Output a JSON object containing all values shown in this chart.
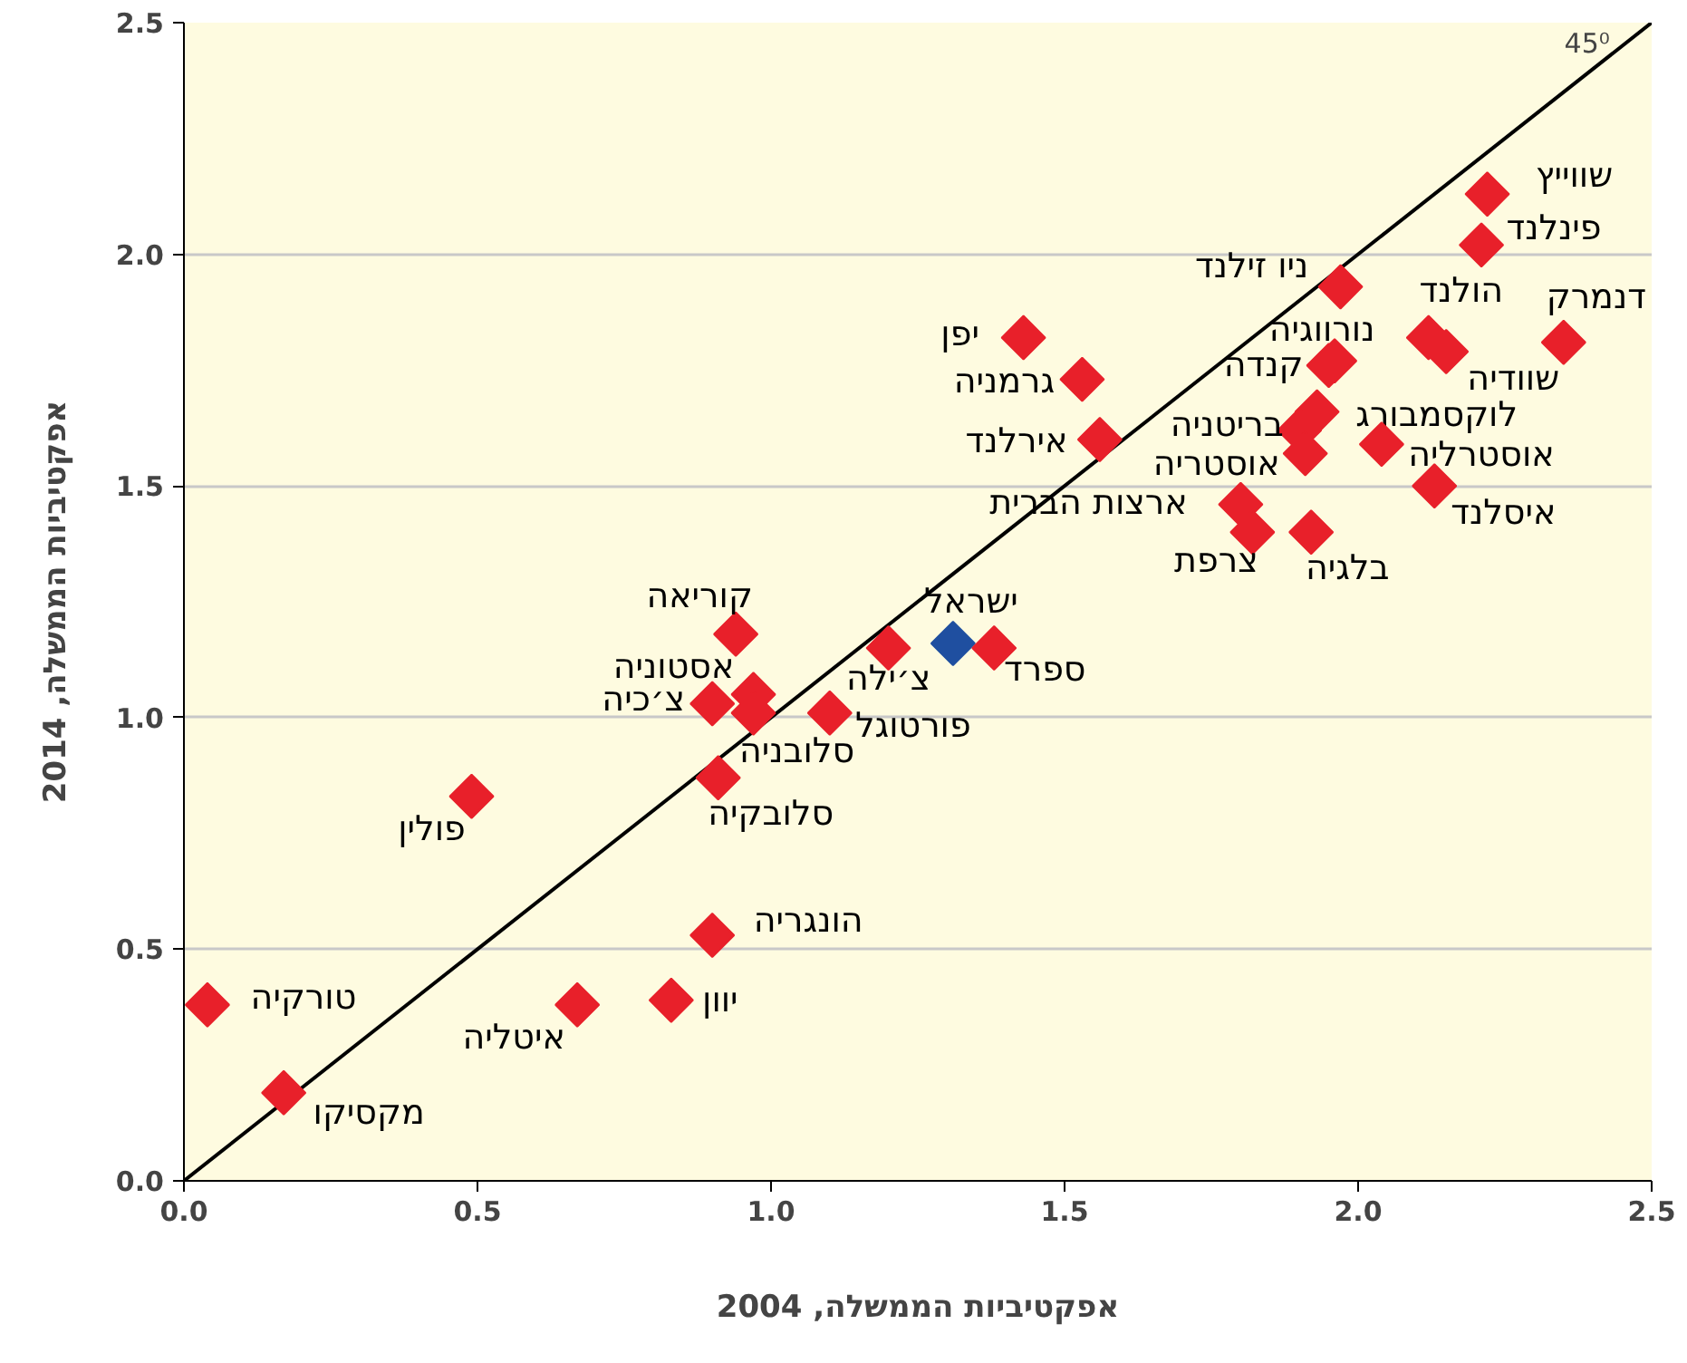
{
  "chart_data": {
    "type": "scatter",
    "xlabel": "אפקטיביות הממשלה, 2004",
    "ylabel": "אפקטיביות הממשלה, 2014",
    "xlim": [
      0,
      2.5
    ],
    "ylim": [
      0,
      2.5
    ],
    "xticks": [
      {
        "value": 0,
        "label": "0.0"
      },
      {
        "value": 0.5,
        "label": "0.5"
      },
      {
        "value": 1,
        "label": "1.0"
      },
      {
        "value": 1.5,
        "label": "1.5"
      },
      {
        "value": 2,
        "label": "2.0"
      },
      {
        "value": 2.5,
        "label": "2.5"
      }
    ],
    "yticks": [
      {
        "value": 0,
        "label": "0.0"
      },
      {
        "value": 0.5,
        "label": "0.5"
      },
      {
        "value": 1,
        "label": "1.0"
      },
      {
        "value": 1.5,
        "label": "1.5"
      },
      {
        "value": 2,
        "label": "2.0"
      },
      {
        "value": 2.5,
        "label": "2.5"
      }
    ],
    "grid": "y",
    "marker": "diamond",
    "annotations": [
      {
        "text": "45⁰",
        "x": 2.39,
        "y": 2.42
      }
    ],
    "series": [
      {
        "type": "line",
        "color": "#000000",
        "x": [
          0,
          2.5
        ],
        "values": [
          0,
          2.5
        ],
        "marker": "none"
      },
      {
        "name": "שווייץ",
        "color": "#e8202a",
        "x": [
          2.22
        ],
        "values": [
          2.13
        ]
      },
      {
        "name": "פינלנד",
        "color": "#e8202a",
        "x": [
          2.21
        ],
        "values": [
          2.02
        ]
      },
      {
        "name": "ניו זילנד",
        "color": "#e8202a",
        "x": [
          1.97
        ],
        "values": [
          1.93
        ]
      },
      {
        "name": "הולנד",
        "color": "#e8202a",
        "x": [
          2.12
        ],
        "values": [
          1.82
        ]
      },
      {
        "name": "דנמרק",
        "color": "#e8202a",
        "x": [
          2.35
        ],
        "values": [
          1.81
        ]
      },
      {
        "name": "נורווגיה",
        "color": "#e8202a",
        "x": [
          1.96
        ],
        "values": [
          1.77
        ]
      },
      {
        "name": "שוודיה",
        "color": "#e8202a",
        "x": [
          2.15
        ],
        "values": [
          1.79
        ]
      },
      {
        "name": "קנדה",
        "color": "#e8202a",
        "x": [
          1.95
        ],
        "values": [
          1.76
        ]
      },
      {
        "name": "לוקסמבורג",
        "color": "#e8202a",
        "x": [
          1.93
        ],
        "values": [
          1.66
        ]
      },
      {
        "name": "בריטניה",
        "color": "#e8202a",
        "x": [
          1.9
        ],
        "values": [
          1.62
        ]
      },
      {
        "name": "אוסטרליה",
        "color": "#e8202a",
        "x": [
          2.04
        ],
        "values": [
          1.59
        ]
      },
      {
        "name": "אוסטריה",
        "color": "#e8202a",
        "x": [
          1.91
        ],
        "values": [
          1.57
        ]
      },
      {
        "name": "איסלנד",
        "color": "#e8202a",
        "x": [
          2.13
        ],
        "values": [
          1.5
        ]
      },
      {
        "name": "ארצות הברית",
        "color": "#e8202a",
        "x": [
          1.8
        ],
        "values": [
          1.46
        ]
      },
      {
        "name": "צרפת",
        "color": "#e8202a",
        "x": [
          1.82
        ],
        "values": [
          1.4
        ]
      },
      {
        "name": "בלגיה",
        "color": "#e8202a",
        "x": [
          1.92
        ],
        "values": [
          1.4
        ]
      },
      {
        "name": "יפן",
        "color": "#e8202a",
        "x": [
          1.43
        ],
        "values": [
          1.82
        ]
      },
      {
        "name": "גרמניה",
        "color": "#e8202a",
        "x": [
          1.53
        ],
        "values": [
          1.73
        ]
      },
      {
        "name": "אירלנד",
        "color": "#e8202a",
        "x": [
          1.56
        ],
        "values": [
          1.6
        ]
      },
      {
        "name": "קוריאה",
        "color": "#e8202a",
        "x": [
          0.94
        ],
        "values": [
          1.18
        ]
      },
      {
        "name": "ישראל",
        "color": "#1f4fa0",
        "x": [
          1.31
        ],
        "values": [
          1.16
        ]
      },
      {
        "name": "אסטוניה",
        "color": "#e8202a",
        "x": [
          0.97
        ],
        "values": [
          1.05
        ]
      },
      {
        "name": "צ׳כיה",
        "color": "#e8202a",
        "x": [
          0.9
        ],
        "values": [
          1.03
        ]
      },
      {
        "name": "צ׳ילה",
        "color": "#e8202a",
        "x": [
          1.2
        ],
        "values": [
          1.15
        ]
      },
      {
        "name": "ספרד",
        "color": "#e8202a",
        "x": [
          1.38
        ],
        "values": [
          1.15
        ]
      },
      {
        "name": "פורטוגל",
        "color": "#e8202a",
        "x": [
          1.1
        ],
        "values": [
          1.01
        ]
      },
      {
        "name": "סלובניה",
        "color": "#e8202a",
        "x": [
          0.97
        ],
        "values": [
          1.01
        ]
      },
      {
        "name": "סלובקיה",
        "color": "#e8202a",
        "x": [
          0.91
        ],
        "values": [
          0.87
        ]
      },
      {
        "name": "פולין",
        "color": "#e8202a",
        "x": [
          0.49
        ],
        "values": [
          0.83
        ]
      },
      {
        "name": "הונגריה",
        "color": "#e8202a",
        "x": [
          0.9
        ],
        "values": [
          0.53
        ]
      },
      {
        "name": "יוון",
        "color": "#e8202a",
        "x": [
          0.83
        ],
        "values": [
          0.39
        ]
      },
      {
        "name": "איטליה",
        "color": "#e8202a",
        "x": [
          0.67
        ],
        "values": [
          0.38
        ]
      },
      {
        "name": "טורקיה",
        "color": "#e8202a",
        "x": [
          0.04
        ],
        "values": [
          0.38
        ]
      },
      {
        "name": "מקסיקו",
        "color": "#e8202a",
        "x": [
          0.17
        ],
        "values": [
          0.19
        ]
      }
    ]
  }
}
